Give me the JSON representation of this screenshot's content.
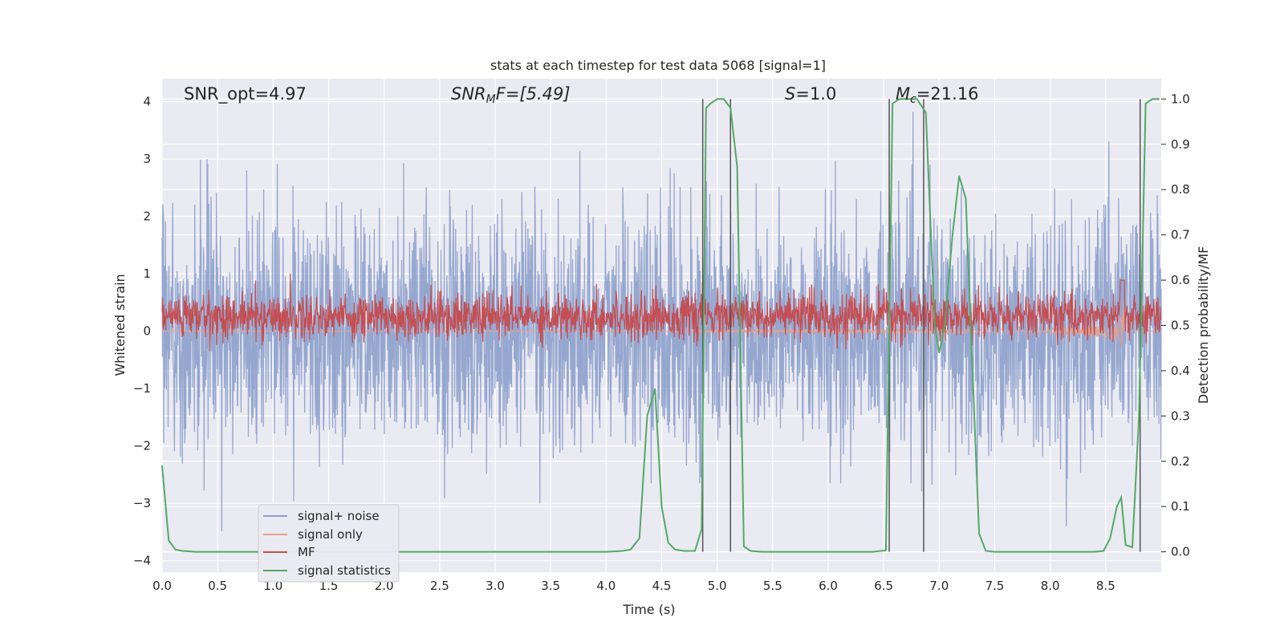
{
  "chart_data": {
    "type": "line",
    "title": "stats at each timestep for test data 5068 [signal=1]",
    "xlabel": "Time (s)",
    "ylabel": "Whitened strain",
    "y2label": "Detection probability/MF",
    "xlim": [
      0.0,
      9.0
    ],
    "ylim": [
      -4.2,
      4.4
    ],
    "y2lim": [
      -0.045,
      1.045
    ],
    "xticks": [
      "0.0",
      "0.5",
      "1.0",
      "1.5",
      "2.0",
      "2.5",
      "3.0",
      "3.5",
      "4.0",
      "4.5",
      "5.0",
      "5.5",
      "6.0",
      "6.5",
      "7.0",
      "7.5",
      "8.0",
      "8.5"
    ],
    "yticks": [
      "−4",
      "−3",
      "−2",
      "−1",
      "0",
      "1",
      "2",
      "3",
      "4"
    ],
    "y2ticks": [
      "0.0",
      "0.1",
      "0.2",
      "0.3",
      "0.4",
      "0.5",
      "0.6",
      "0.7",
      "0.8",
      "0.9",
      "1.0"
    ],
    "grid": true,
    "legend_position": "lower-left",
    "annotations": {
      "snr_opt": "SNR_opt=4.97",
      "snr_mf_main": "SNR",
      "snr_mf_sub": "M",
      "snr_mf_rest": "F=[5.49]",
      "s_main": "S",
      "s_rest": "=1.0",
      "mc_main": "M",
      "mc_sub": "c",
      "mc_rest": "=21.16"
    },
    "series": [
      {
        "name": "signal+ noise",
        "color": "#8da0cb",
        "amplitude_range": [
          -3.7,
          4.0
        ]
      },
      {
        "name": "signal only",
        "color": "#e8a08a",
        "chirp_start": 6.5,
        "chirp_peak": 8.65,
        "peak_value": 1.0
      },
      {
        "name": "MF",
        "color": "#c44e52",
        "range": [
          0.0,
          1.0
        ]
      },
      {
        "name": "signal statistics",
        "color": "#55a868",
        "x": [
          0.0,
          0.06,
          0.12,
          0.18,
          0.24,
          0.3,
          1.0,
          2.0,
          3.0,
          4.0,
          4.15,
          4.22,
          4.3,
          4.37,
          4.44,
          4.5,
          4.56,
          4.62,
          4.7,
          4.8,
          4.86,
          4.9,
          4.94,
          5.0,
          5.06,
          5.12,
          5.18,
          5.24,
          5.3,
          5.4,
          6.0,
          6.4,
          6.52,
          6.58,
          6.64,
          6.7,
          6.8,
          6.88,
          6.96,
          7.0,
          7.05,
          7.12,
          7.18,
          7.24,
          7.3,
          7.36,
          7.42,
          7.5,
          8.0,
          8.4,
          8.48,
          8.54,
          8.6,
          8.64,
          8.68,
          8.74,
          8.8,
          8.86,
          8.92,
          8.98
        ],
        "values": [
          0.19,
          0.025,
          0.005,
          0.002,
          0.001,
          0.0,
          0.0,
          0.0,
          0.0,
          0.0,
          0.002,
          0.005,
          0.03,
          0.3,
          0.36,
          0.1,
          0.02,
          0.005,
          0.002,
          0.002,
          0.05,
          0.98,
          0.99,
          1.0,
          1.0,
          0.98,
          0.85,
          0.012,
          0.002,
          0.0,
          0.0,
          0.0,
          0.003,
          0.99,
          1.0,
          1.0,
          1.0,
          0.97,
          0.5,
          0.44,
          0.5,
          0.7,
          0.83,
          0.78,
          0.4,
          0.04,
          0.002,
          0.0,
          0.0,
          0.0,
          0.002,
          0.03,
          0.1,
          0.12,
          0.015,
          0.01,
          0.3,
          0.99,
          1.0,
          1.0
        ]
      }
    ],
    "vertical_lines": [
      4.87,
      5.12,
      6.55,
      6.86,
      8.81
    ]
  }
}
